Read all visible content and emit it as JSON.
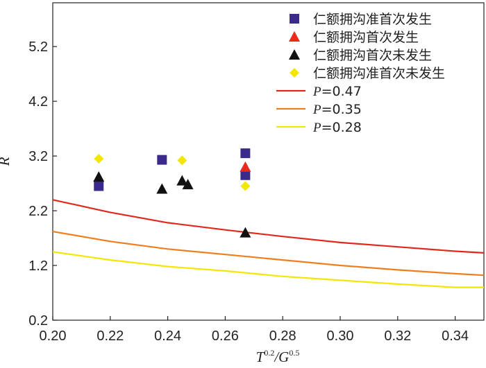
{
  "chart_data": {
    "type": "scatter",
    "xlabel": "T",
    "xlabel_exp1": "0.2",
    "xlabel_mid": "/G",
    "xlabel_exp2": "0.5",
    "ylabel": "R",
    "xlim": [
      0.2,
      0.35
    ],
    "ylim": [
      0.2,
      6.0
    ],
    "x_ticks": [
      "0.20",
      "0.22",
      "0.24",
      "0.26",
      "0.28",
      "0.30",
      "0.32",
      "0.34"
    ],
    "y_ticks": [
      "0.2",
      "1.2",
      "2.2",
      "3.2",
      "4.2",
      "5.2"
    ],
    "legend_position": "top-right",
    "point_series": [
      {
        "name": "仁额拥沟准首次发生",
        "marker": "square",
        "color": "#3b2a8c",
        "points": [
          [
            0.216,
            2.65
          ],
          [
            0.238,
            3.13
          ],
          [
            0.267,
            3.25
          ],
          [
            0.267,
            2.85
          ]
        ]
      },
      {
        "name": "仁额拥沟首次发生",
        "marker": "triangle",
        "color": "#e8291c",
        "points": [
          [
            0.267,
            3.0
          ]
        ]
      },
      {
        "name": "仁额拥沟首次未发生",
        "marker": "triangle",
        "color": "#111111",
        "points": [
          [
            0.216,
            2.82
          ],
          [
            0.238,
            2.6
          ],
          [
            0.245,
            2.75
          ],
          [
            0.247,
            2.68
          ],
          [
            0.267,
            1.8
          ]
        ]
      },
      {
        "name": "仁额拥沟准首次未发生",
        "marker": "diamond",
        "color": "#f3e600",
        "points": [
          [
            0.216,
            3.15
          ],
          [
            0.245,
            3.12
          ],
          [
            0.267,
            2.65
          ]
        ]
      }
    ],
    "line_series": [
      {
        "name_prefix": "P",
        "name_value": "=0.47",
        "color": "#e0281c",
        "x": [
          0.2,
          0.22,
          0.24,
          0.26,
          0.28,
          0.3,
          0.32,
          0.34,
          0.35
        ],
        "y": [
          2.4,
          2.17,
          1.98,
          1.85,
          1.73,
          1.62,
          1.54,
          1.46,
          1.43
        ]
      },
      {
        "name_prefix": "P",
        "name_value": "=0.35",
        "color": "#f07d1c",
        "x": [
          0.2,
          0.22,
          0.24,
          0.26,
          0.28,
          0.3,
          0.32,
          0.34,
          0.35
        ],
        "y": [
          1.82,
          1.64,
          1.5,
          1.4,
          1.3,
          1.2,
          1.12,
          1.05,
          1.02
        ]
      },
      {
        "name_prefix": "P",
        "name_value": "=0.28",
        "color": "#f5e600",
        "x": [
          0.2,
          0.22,
          0.24,
          0.26,
          0.28,
          0.3,
          0.32,
          0.34,
          0.35
        ],
        "y": [
          1.45,
          1.3,
          1.18,
          1.1,
          1.0,
          0.93,
          0.86,
          0.8,
          0.8
        ]
      }
    ]
  }
}
